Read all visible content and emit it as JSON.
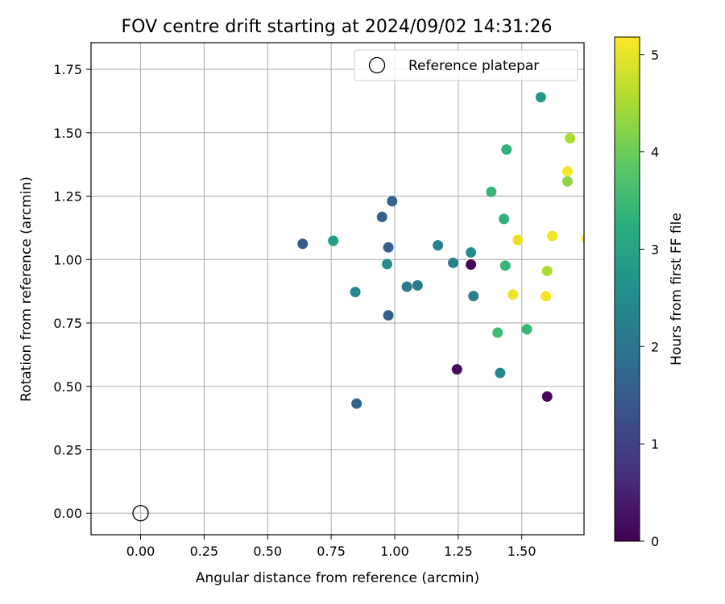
{
  "chart_data": {
    "type": "scatter",
    "title": "FOV centre drift starting at 2024/09/02 14:31:26",
    "xlabel": "Angular distance from reference (arcmin)",
    "ylabel": "Rotation from reference (arcmin)",
    "xlim": [
      -0.195,
      1.745
    ],
    "ylim": [
      -0.085,
      1.855
    ],
    "x_ticks": [
      0.0,
      0.25,
      0.5,
      0.75,
      1.0,
      1.25,
      1.5
    ],
    "x_tick_labels": [
      "0.00",
      "0.25",
      "0.50",
      "0.75",
      "1.00",
      "1.25",
      "1.50"
    ],
    "y_ticks": [
      0.0,
      0.25,
      0.5,
      0.75,
      1.0,
      1.25,
      1.5,
      1.75
    ],
    "y_tick_labels": [
      "0.00",
      "0.25",
      "0.50",
      "0.75",
      "1.00",
      "1.25",
      "1.50",
      "1.75"
    ],
    "grid": true,
    "legend": {
      "placement": "top-right",
      "entries": [
        {
          "label": "Reference platepar",
          "marker": "open-circle",
          "x": 0.0,
          "y": 0.0
        }
      ]
    },
    "colorbar": {
      "label": "Hours from first FF file",
      "colormap": "viridis",
      "range": [
        0,
        5.18
      ],
      "ticks": [
        0,
        1,
        2,
        3,
        4,
        5
      ],
      "tick_labels": [
        "0",
        "1",
        "2",
        "3",
        "4",
        "5"
      ]
    },
    "points": [
      {
        "x": 1.3,
        "y": 0.98,
        "hours": 0.05
      },
      {
        "x": 1.245,
        "y": 0.567,
        "hours": 0.15
      },
      {
        "x": 1.6,
        "y": 0.46,
        "hours": 0.1
      },
      {
        "x": 0.638,
        "y": 1.062,
        "hours": 1.45
      },
      {
        "x": 0.95,
        "y": 1.168,
        "hours": 1.55
      },
      {
        "x": 0.99,
        "y": 1.23,
        "hours": 1.65
      },
      {
        "x": 0.975,
        "y": 1.048,
        "hours": 1.6
      },
      {
        "x": 0.975,
        "y": 0.78,
        "hours": 1.6
      },
      {
        "x": 0.85,
        "y": 0.432,
        "hours": 1.65
      },
      {
        "x": 1.048,
        "y": 0.893,
        "hours": 2.1
      },
      {
        "x": 1.09,
        "y": 0.898,
        "hours": 2.2
      },
      {
        "x": 0.845,
        "y": 0.872,
        "hours": 2.4
      },
      {
        "x": 0.97,
        "y": 0.982,
        "hours": 2.5
      },
      {
        "x": 1.17,
        "y": 1.056,
        "hours": 2.3
      },
      {
        "x": 1.23,
        "y": 0.987,
        "hours": 2.2
      },
      {
        "x": 1.31,
        "y": 0.856,
        "hours": 2.25
      },
      {
        "x": 1.3,
        "y": 1.028,
        "hours": 2.5
      },
      {
        "x": 1.415,
        "y": 0.553,
        "hours": 2.35
      },
      {
        "x": 0.758,
        "y": 1.074,
        "hours": 2.85
      },
      {
        "x": 1.575,
        "y": 1.64,
        "hours": 2.75
      },
      {
        "x": 1.38,
        "y": 1.267,
        "hours": 3.4
      },
      {
        "x": 1.43,
        "y": 1.16,
        "hours": 3.3
      },
      {
        "x": 1.44,
        "y": 1.434,
        "hours": 3.3
      },
      {
        "x": 1.435,
        "y": 0.976,
        "hours": 3.45
      },
      {
        "x": 1.405,
        "y": 0.712,
        "hours": 3.55
      },
      {
        "x": 1.52,
        "y": 0.725,
        "hours": 3.45
      },
      {
        "x": 1.68,
        "y": 1.308,
        "hours": 4.3
      },
      {
        "x": 1.69,
        "y": 1.478,
        "hours": 4.5
      },
      {
        "x": 1.6,
        "y": 0.955,
        "hours": 4.55
      },
      {
        "x": 1.68,
        "y": 1.348,
        "hours": 5.1
      },
      {
        "x": 1.485,
        "y": 1.077,
        "hours": 5.0
      },
      {
        "x": 1.62,
        "y": 1.093,
        "hours": 5.1
      },
      {
        "x": 1.465,
        "y": 0.862,
        "hours": 5.05
      },
      {
        "x": 1.595,
        "y": 0.855,
        "hours": 5.1
      },
      {
        "x": 1.755,
        "y": 1.082,
        "hours": 5.15
      }
    ]
  }
}
